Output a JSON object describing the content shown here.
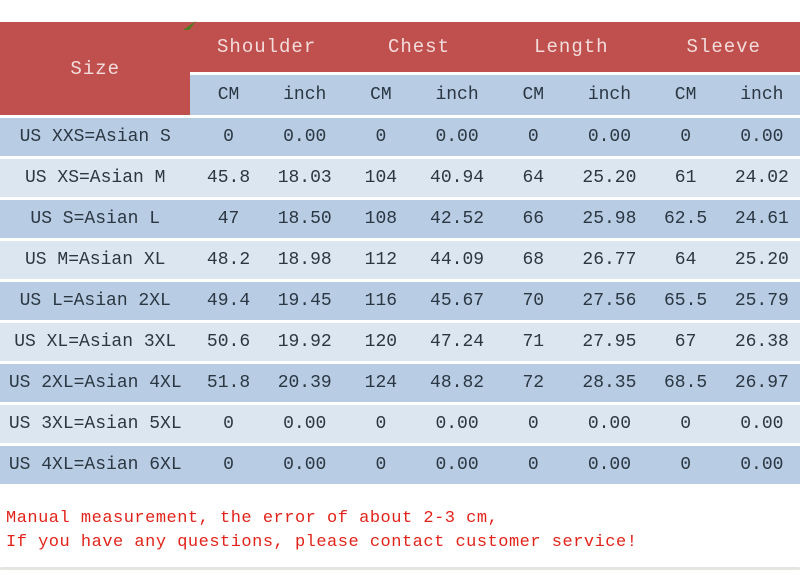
{
  "colors": {
    "header_red": "#c0504d",
    "header_text": "#f2dcdc",
    "row_blue": "#b8cce4",
    "row_light": "#dce6f1",
    "table_text": "#2b3742",
    "footer_red": "#e2231a"
  },
  "table": {
    "size_header": "Size",
    "groups": [
      {
        "label": "Shoulder"
      },
      {
        "label": "Chest"
      },
      {
        "label": "Length"
      },
      {
        "label": "Sleeve"
      }
    ],
    "units": [
      "CM",
      "inch",
      "CM",
      "inch",
      "CM",
      "inch",
      "CM",
      "inch"
    ],
    "rows": [
      {
        "size": "US XXS=Asian S",
        "values": [
          "0",
          "0.00",
          "0",
          "0.00",
          "0",
          "0.00",
          "0",
          "0.00"
        ]
      },
      {
        "size": "US XS=Asian M",
        "values": [
          "45.8",
          "18.03",
          "104",
          "40.94",
          "64",
          "25.20",
          "61",
          "24.02"
        ]
      },
      {
        "size": "US S=Asian L",
        "values": [
          "47",
          "18.50",
          "108",
          "42.52",
          "66",
          "25.98",
          "62.5",
          "24.61"
        ]
      },
      {
        "size": "US M=Asian XL",
        "values": [
          "48.2",
          "18.98",
          "112",
          "44.09",
          "68",
          "26.77",
          "64",
          "25.20"
        ]
      },
      {
        "size": "US L=Asian 2XL",
        "values": [
          "49.4",
          "19.45",
          "116",
          "45.67",
          "70",
          "27.56",
          "65.5",
          "25.79"
        ]
      },
      {
        "size": "US XL=Asian 3XL",
        "values": [
          "50.6",
          "19.92",
          "120",
          "47.24",
          "71",
          "27.95",
          "67",
          "26.38"
        ]
      },
      {
        "size": "US 2XL=Asian 4XL",
        "values": [
          "51.8",
          "20.39",
          "124",
          "48.82",
          "72",
          "28.35",
          "68.5",
          "26.97"
        ]
      },
      {
        "size": "US 3XL=Asian 5XL",
        "values": [
          "0",
          "0.00",
          "0",
          "0.00",
          "0",
          "0.00",
          "0",
          "0.00"
        ]
      },
      {
        "size": "US 4XL=Asian 6XL",
        "values": [
          "0",
          "0.00",
          "0",
          "0.00",
          "0",
          "0.00",
          "0",
          "0.00"
        ]
      }
    ]
  },
  "footer": {
    "line1": "Manual measurement, the error of about 2-3 cm,",
    "line2": "If you have any questions, please contact customer service!"
  }
}
